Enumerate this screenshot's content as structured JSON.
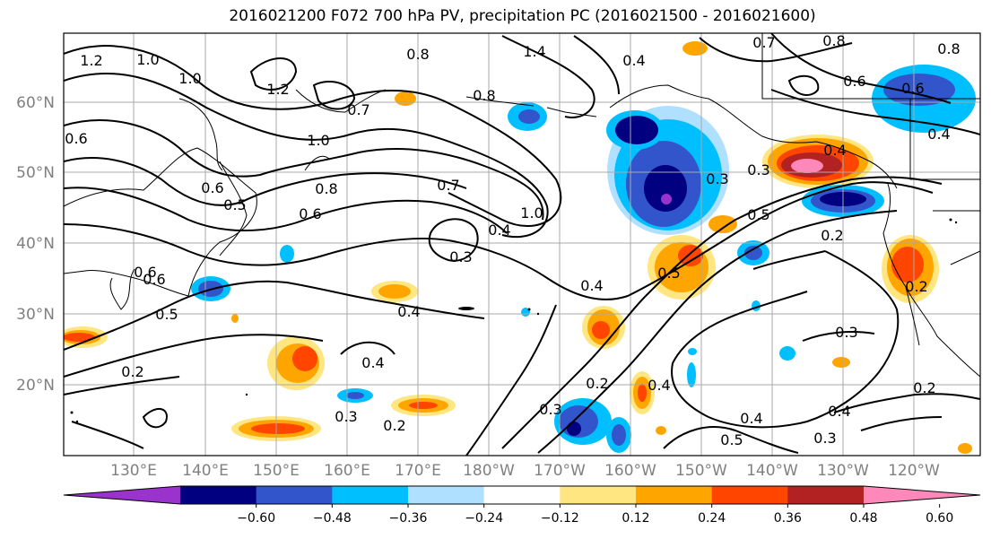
{
  "title": "2016021200 F072 700 hPa PV, precipitation PC (2016021500 - 2016021600)",
  "lat_labels": [
    "60°N",
    "50°N",
    "40°N",
    "30°N",
    "20°N"
  ],
  "lon_labels": [
    "130°E",
    "140°E",
    "150°E",
    "160°E",
    "170°E",
    "180°W",
    "170°W",
    "160°W",
    "150°W",
    "140°W",
    "130°W",
    "120°W"
  ],
  "colorbar": {
    "colors": [
      "#9933cc",
      "#000080",
      "#3355cc",
      "#00bfff",
      "#b0e0ff",
      "#ffffff",
      "#ffe680",
      "#ffa500",
      "#ff4500",
      "#b22222",
      "#ff88bb"
    ],
    "ticks": [
      "−0.60",
      "−0.48",
      "−0.36",
      "−0.24",
      "−0.12",
      "0.12",
      "0.24",
      "0.36",
      "0.48",
      "0.60"
    ]
  },
  "contour_labels": [
    "1.2",
    "1.0",
    "1.0",
    "1.2",
    "0.8",
    "1.4",
    "0.8",
    "0.4",
    "0.7",
    "0.8",
    "0.8",
    "0.6",
    "0.6",
    "0.4",
    "1.0",
    "0.7",
    "0.8",
    "0.6",
    "0.6",
    "0.5",
    "0.7",
    "1.0",
    "0.4",
    "0.3",
    "0.3",
    "0.3",
    "0.4",
    "0.5",
    "0.2",
    "0.6",
    "0.5",
    "0.4",
    "0.5",
    "0.4",
    "0.4",
    "0.3",
    "0.2",
    "0.2",
    "0.3",
    "0.2",
    "0.3",
    "0.2",
    "0.4",
    "0.4",
    "0.5",
    "0.3",
    "0.4",
    "0.2",
    "0.6",
    "0.6"
  ]
}
